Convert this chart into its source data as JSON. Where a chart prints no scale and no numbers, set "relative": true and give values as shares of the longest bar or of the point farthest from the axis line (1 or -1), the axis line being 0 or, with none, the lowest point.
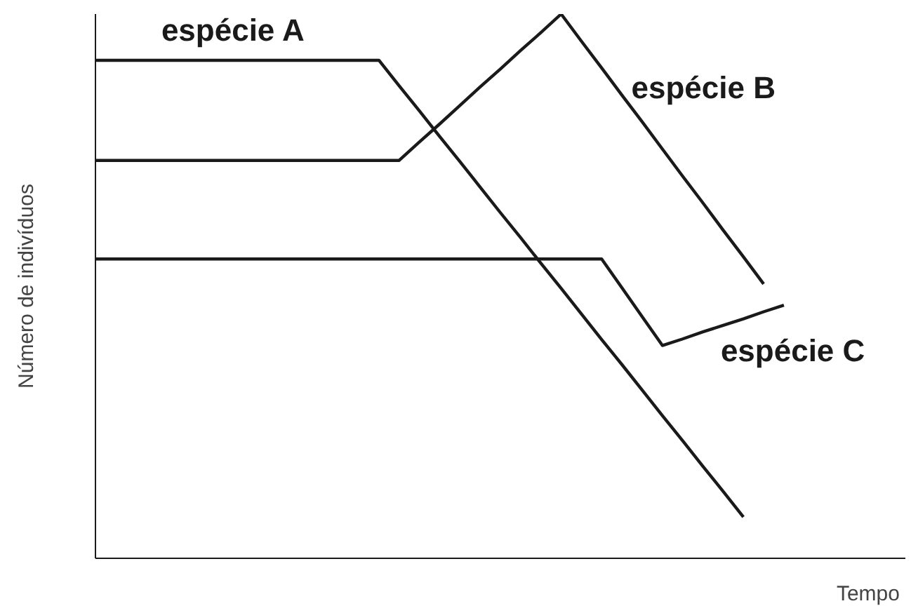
{
  "chart_data": {
    "type": "line",
    "relative": true,
    "xlabel": "Tempo",
    "ylabel": "Número de indivíduos",
    "categories": [
      null,
      null,
      null,
      null,
      null,
      null,
      null,
      null,
      null,
      null,
      null,
      null,
      null,
      null,
      null,
      null,
      null,
      null,
      null,
      null,
      null,
      null,
      null,
      null,
      null,
      null,
      null,
      null,
      null,
      null,
      null,
      null,
      null,
      null,
      null,
      null,
      null,
      null,
      null,
      null,
      null
    ],
    "series": [
      {
        "name": "espécie A",
        "color": "#1a1a1a",
        "values": [
          0.915,
          0.915,
          0.915,
          0.915,
          0.915,
          0.915,
          0.915,
          0.915,
          0.915,
          0.915,
          0.915,
          0.915,
          0.915,
          0.915,
          0.915,
          0.868,
          0.822,
          0.775,
          0.729,
          0.682,
          0.635,
          0.589,
          0.542,
          0.496,
          0.449,
          0.402,
          0.356,
          0.309,
          0.262,
          0.216,
          0.169,
          0.123,
          0.076,
          null,
          null,
          null,
          null,
          null,
          null,
          null,
          null
        ]
      },
      {
        "name": "espécie B",
        "color": "#1a1a1a",
        "values": [
          0.731,
          0.731,
          0.731,
          0.731,
          0.731,
          0.731,
          0.731,
          0.731,
          0.731,
          0.731,
          0.731,
          0.731,
          0.731,
          0.731,
          0.731,
          0.731,
          0.765,
          0.798,
          0.832,
          0.866,
          0.899,
          0.933,
          0.966,
          1,
          0.95,
          0.901,
          0.851,
          0.802,
          0.752,
          0.702,
          0.653,
          0.603,
          0.554,
          0.504,
          null,
          null,
          null,
          null,
          null,
          null,
          null
        ]
      },
      {
        "name": "espécie C",
        "color": "#1a1a1a",
        "values": [
          0.55,
          0.55,
          0.55,
          0.55,
          0.55,
          0.55,
          0.55,
          0.55,
          0.55,
          0.55,
          0.55,
          0.55,
          0.55,
          0.55,
          0.55,
          0.55,
          0.55,
          0.55,
          0.55,
          0.55,
          0.55,
          0.55,
          0.55,
          0.55,
          0.55,
          0.55,
          0.497,
          0.444,
          0.391,
          0.403,
          0.416,
          0.428,
          0.44,
          0.453,
          0.465,
          null,
          null,
          null,
          null,
          null,
          null
        ]
      }
    ]
  }
}
